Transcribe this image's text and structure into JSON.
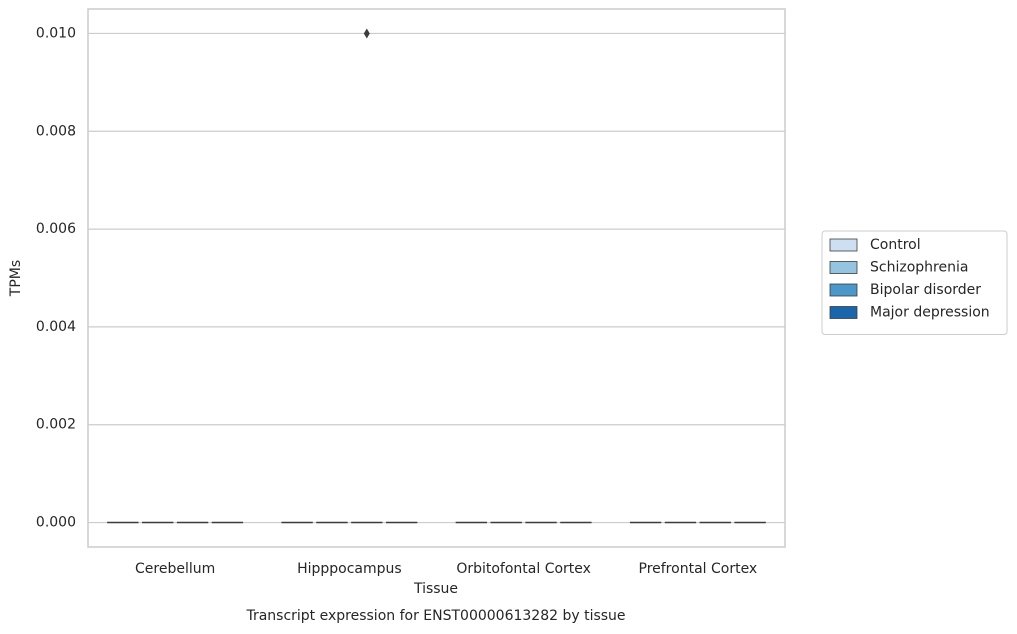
{
  "chart_data": {
    "type": "box",
    "title": "Transcript expression for ENST00000613282 by tissue",
    "x_label": "Tissue",
    "y_label": "TPMs",
    "categories": [
      "Cerebellum",
      "Hipppocampus",
      "Orbitofontal Cortex",
      "Prefrontal Cortex"
    ],
    "series": [
      {
        "name": "Control",
        "color": "#cde0f1",
        "min": [
          0,
          0,
          0,
          0
        ],
        "q1": [
          0,
          0,
          0,
          0
        ],
        "median": [
          0,
          0,
          0,
          0
        ],
        "q3": [
          0,
          0,
          0,
          0
        ],
        "max": [
          0,
          0,
          0,
          0
        ],
        "outliers": [
          [],
          [],
          [],
          []
        ]
      },
      {
        "name": "Schizophrenia",
        "color": "#94c4df",
        "min": [
          0,
          0,
          0,
          0
        ],
        "q1": [
          0,
          0,
          0,
          0
        ],
        "median": [
          0,
          0,
          0,
          0
        ],
        "q3": [
          0,
          0,
          0,
          0
        ],
        "max": [
          0,
          0,
          0,
          0
        ],
        "outliers": [
          [],
          [],
          [],
          []
        ]
      },
      {
        "name": "Bipolar disorder",
        "color": "#4b97c9",
        "min": [
          0,
          0,
          0,
          0
        ],
        "q1": [
          0,
          0,
          0,
          0
        ],
        "median": [
          0,
          0,
          0,
          0
        ],
        "q3": [
          0,
          0,
          0,
          0
        ],
        "max": [
          0,
          0,
          0,
          0
        ],
        "outliers": [
          [],
          [
            0.01
          ],
          [],
          []
        ]
      },
      {
        "name": "Major depression",
        "color": "#1966ad",
        "min": [
          0,
          0,
          0,
          0
        ],
        "q1": [
          0,
          0,
          0,
          0
        ],
        "median": [
          0,
          0,
          0,
          0
        ],
        "q3": [
          0,
          0,
          0,
          0
        ],
        "max": [
          0,
          0,
          0,
          0
        ],
        "outliers": [
          [],
          [],
          [],
          []
        ]
      }
    ],
    "ylim": [
      -0.0005,
      0.0105
    ],
    "yticks": [
      {
        "value": 0,
        "label": "0.000"
      },
      {
        "value": 0.002,
        "label": "0.002"
      },
      {
        "value": 0.004,
        "label": "0.004"
      },
      {
        "value": 0.006,
        "label": "0.006"
      },
      {
        "value": 0.008,
        "label": "0.008"
      },
      {
        "value": 0.01,
        "label": "0.010"
      }
    ],
    "grid": true,
    "legend": "right"
  }
}
